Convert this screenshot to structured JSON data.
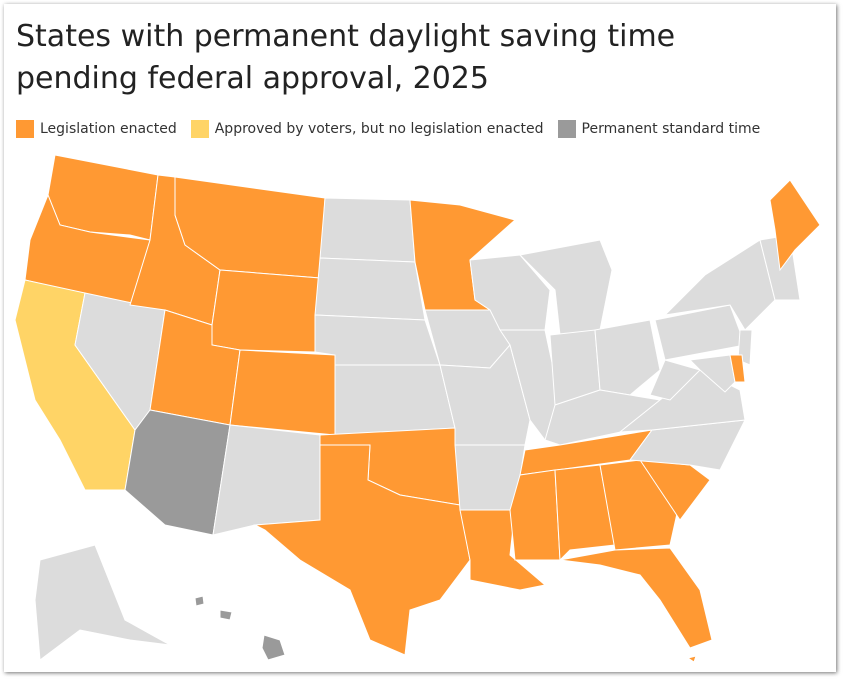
{
  "title": "States with permanent daylight saving time pending federal approval, 2025",
  "legend": [
    {
      "name": "Legislation enacted",
      "color": "#ff9933"
    },
    {
      "name": "Approved by voters, but no legislation enacted",
      "color": "#ffd466"
    },
    {
      "name": "Permanent standard time",
      "color": "#9a9a9a"
    }
  ]
}
